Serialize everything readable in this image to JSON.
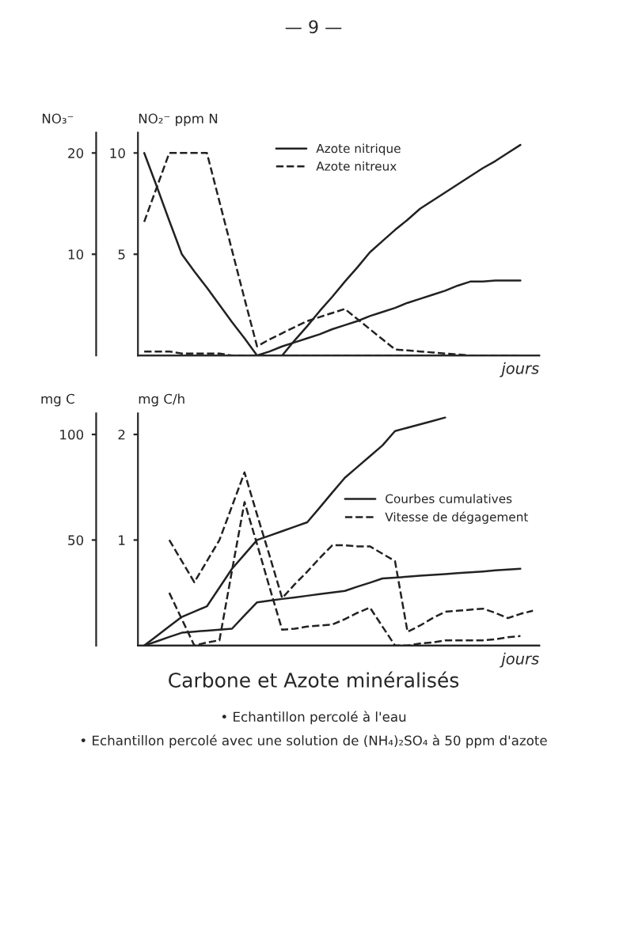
{
  "chart_data": [
    {
      "type": "line",
      "ylabel": "NO₃⁻",
      "y2label": "NO₂⁻ ppm N",
      "xlabel": "jours",
      "annotations": [
        "— 9 —"
      ],
      "categories": [
        null,
        null,
        null,
        null,
        null,
        null,
        null,
        null,
        null,
        null,
        null,
        null,
        null,
        null,
        null,
        null,
        null,
        null,
        null,
        null,
        null,
        null,
        null,
        null,
        null,
        null,
        null,
        null,
        null,
        null,
        null,
        null
      ],
      "ylim": [
        0,
        22
      ],
      "yticks": [
        10,
        20
      ],
      "y2lim": [
        0,
        11
      ],
      "y2ticks": [
        5,
        10
      ],
      "legend": "top",
      "grid": false,
      "series": [
        {
          "name": "Azote nitrique",
          "color": "#222222",
          "line_style": "solid",
          "values": [
            20,
            16.7,
            13.3,
            10,
            8.3,
            6.7,
            5,
            3.3,
            1.7,
            0,
            0.4,
            0.9,
            1.3,
            1.7,
            2.1,
            2.6,
            3,
            3.4,
            3.9,
            4.3,
            4.7,
            5.2,
            5.6,
            6,
            6.4,
            6.9,
            7.3,
            7.3,
            7.4,
            7.4,
            7.4,
            null
          ]
        },
        {
          "color": "#222222",
          "line_style": "solid",
          "values": [
            null,
            null,
            null,
            null,
            null,
            null,
            null,
            null,
            null,
            null,
            null,
            0,
            1.5,
            2.9,
            4.4,
            5.8,
            7.3,
            8.7,
            10.2,
            11.3,
            12.4,
            13.4,
            14.5,
            15.3,
            16.1,
            16.9,
            17.7,
            18.5,
            19.2,
            20,
            20.8,
            null
          ]
        },
        {
          "name": "Azote nitreux",
          "color": "#222222",
          "line_style": "dashed",
          "axis": "y2",
          "values": [
            6.6,
            8.3,
            10,
            10,
            10,
            10,
            7.6,
            5.2,
            2.8,
            0.45,
            0.8,
            1.1,
            1.4,
            1.7,
            1.9,
            2.1,
            2.3,
            1.8,
            1.3,
            0.8,
            0.3,
            0.25,
            0.2,
            0.15,
            0.1,
            0.05,
            0,
            null,
            null,
            null,
            null,
            null
          ]
        },
        {
          "color": "#222222",
          "line_style": "dashed",
          "axis": "y2",
          "values": [
            0.2,
            0.2,
            0.2,
            0.1,
            0.1,
            0.1,
            0.1,
            0,
            0,
            0,
            0,
            0,
            0,
            0,
            0,
            0,
            0,
            0,
            0,
            0,
            0,
            0,
            0,
            0,
            0,
            0,
            0,
            0,
            0,
            0,
            0,
            null
          ]
        }
      ]
    },
    {
      "type": "line",
      "ylabel": "mg C",
      "y2label": "mg C/h",
      "xlabel": "jours",
      "title": "Carbone et Azote minéralisés",
      "annotations": [
        "• Echantillon percolé à l'eau",
        "• Echantillon percolé avec une solution de (NH₄)₂SO₄ à 50 ppm d'azote"
      ],
      "categories": [
        null,
        null,
        null,
        null,
        null,
        null,
        null,
        null,
        null,
        null,
        null,
        null,
        null,
        null,
        null,
        null,
        null,
        null,
        null,
        null,
        null,
        null,
        null,
        null,
        null,
        null,
        null,
        null,
        null,
        null,
        null,
        null
      ],
      "ylim": [
        0,
        110
      ],
      "yticks": [
        50,
        100
      ],
      "y2lim": [
        0,
        2.2
      ],
      "y2ticks": [
        1,
        2
      ],
      "legend": "top right",
      "grid": false,
      "series": [
        {
          "name": "Courbes cumulatives",
          "color": "#222222",
          "line_style": "solid",
          "values": [
            0,
            4.5,
            9.1,
            13.6,
            16.1,
            18.6,
            27.5,
            36.4,
            43.2,
            50,
            52.1,
            54.2,
            56.3,
            58.4,
            65.4,
            72.5,
            79.5,
            84.6,
            89.7,
            94.8,
            101.6,
            103.2,
            104.8,
            106.4,
            108,
            null,
            null,
            null,
            null,
            null,
            null,
            null
          ]
        },
        {
          "color": "#222222",
          "line_style": "solid",
          "values": [
            0,
            2,
            4.1,
            6.1,
            6.6,
            7.1,
            7.5,
            8,
            14.3,
            20.5,
            21.3,
            22.1,
            22.8,
            23.6,
            24.4,
            25.1,
            25.9,
            27.9,
            29.8,
            31.8,
            32.2,
            32.6,
            33.1,
            33.5,
            33.9,
            34.3,
            34.7,
            35.1,
            35.6,
            36,
            36.4,
            null
          ]
        },
        {
          "name": "Vitesse de dégagement",
          "color": "#222222",
          "line_style": "dashed",
          "axis": "y2",
          "values": [
            null,
            null,
            1.0,
            0.8,
            0.6,
            0.8,
            1.0,
            1.32,
            1.64,
            1.24,
            0.85,
            0.45,
            0.58,
            0.7,
            0.83,
            0.95,
            0.95,
            0.94,
            0.94,
            0.87,
            0.8,
            0.13,
            0.19,
            0.26,
            0.32,
            0.33,
            0.34,
            0.35,
            0.31,
            0.26,
            0.3,
            0.33
          ]
        },
        {
          "color": "#222222",
          "line_style": "dashed",
          "axis": "y2",
          "values": [
            null,
            null,
            0.5,
            0.25,
            0,
            0.03,
            0.05,
            0.71,
            1.36,
            0.96,
            0.55,
            0.15,
            0.16,
            0.18,
            0.19,
            0.2,
            0.25,
            0.31,
            0.36,
            0.18,
            0,
            0,
            0.02,
            0.03,
            0.05,
            0.05,
            0.05,
            0.05,
            0.06,
            0.08,
            0.09,
            null
          ]
        }
      ]
    }
  ]
}
